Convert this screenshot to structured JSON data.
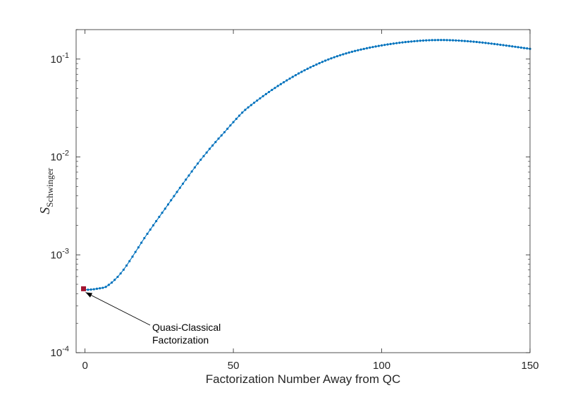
{
  "chart_data": {
    "type": "scatter",
    "xlabel": "Factorization Number Away from QC",
    "ylabel": "S",
    "ylabel_subscript": "Schwinger",
    "xlim": [
      -3,
      150
    ],
    "ylim": [
      0.0001,
      0.2
    ],
    "yscale": "log",
    "xticks": [
      0,
      50,
      100,
      150
    ],
    "xtick_labels": [
      "0",
      "50",
      "100",
      "150"
    ],
    "yticks": [
      0.0001,
      0.001,
      0.01,
      0.1
    ],
    "ytick_labels": [
      {
        "base": "10",
        "exp": "-4"
      },
      {
        "base": "10",
        "exp": "-3"
      },
      {
        "base": "10",
        "exp": "-2"
      },
      {
        "base": "10",
        "exp": "-1"
      }
    ],
    "grid": false,
    "colors": {
      "series": "#0072bd",
      "highlight": "#a2142f",
      "axis": "#262626"
    },
    "series": [
      {
        "x": [
          0,
          1,
          2,
          3,
          4,
          5,
          6,
          7,
          8,
          9,
          10,
          11,
          12,
          13,
          14,
          15,
          16,
          17,
          18,
          19,
          20,
          21,
          22,
          23,
          24,
          25,
          26,
          27,
          28,
          29,
          30,
          31,
          32,
          33,
          34,
          35,
          36,
          37,
          38,
          39,
          40,
          41,
          42,
          43,
          44,
          45,
          46,
          47,
          48,
          49,
          50,
          51,
          52,
          53,
          54,
          55,
          56,
          57,
          58,
          59,
          60,
          61,
          62,
          63,
          64,
          65,
          66,
          67,
          68,
          69,
          70,
          71,
          72,
          73,
          74,
          75,
          76,
          77,
          78,
          79,
          80,
          81,
          82,
          83,
          84,
          85,
          86,
          87,
          88,
          89,
          90,
          91,
          92,
          93,
          94,
          95,
          96,
          97,
          98,
          99,
          100,
          101,
          102,
          103,
          104,
          105,
          106,
          107,
          108,
          109,
          110,
          111,
          112,
          113,
          114,
          115,
          116,
          117,
          118,
          119,
          120,
          121,
          122,
          123,
          124,
          125,
          126,
          127,
          128,
          129,
          130,
          131,
          132,
          133,
          134,
          135,
          136,
          137,
          138,
          139,
          140,
          141,
          142,
          143,
          144,
          145,
          146,
          147,
          148,
          149,
          150
        ],
        "values": [
          0.00044,
          0.00044,
          0.000442,
          0.000445,
          0.00045,
          0.000455,
          0.00046,
          0.00047,
          0.000493,
          0.00052,
          0.000555,
          0.000595,
          0.000645,
          0.000705,
          0.000777,
          0.000862,
          0.000958,
          0.00107,
          0.00119,
          0.00133,
          0.00148,
          0.00164,
          0.00181,
          0.002,
          0.00221,
          0.00244,
          0.00269,
          0.00296,
          0.00327,
          0.00361,
          0.00398,
          0.00439,
          0.00484,
          0.00533,
          0.00587,
          0.00646,
          0.00711,
          0.00782,
          0.00857,
          0.00937,
          0.0102,
          0.0111,
          0.0121,
          0.0131,
          0.0142,
          0.0154,
          0.0166,
          0.0179,
          0.0194,
          0.021,
          0.0227,
          0.0245,
          0.0264,
          0.0284,
          0.0303,
          0.0321,
          0.0339,
          0.0358,
          0.0377,
          0.0397,
          0.0418,
          0.0439,
          0.0461,
          0.0484,
          0.0507,
          0.0531,
          0.0555,
          0.058,
          0.0606,
          0.0632,
          0.0658,
          0.0685,
          0.0713,
          0.074,
          0.0768,
          0.0796,
          0.0824,
          0.0852,
          0.088,
          0.0908,
          0.0936,
          0.0964,
          0.0991,
          0.1018,
          0.1044,
          0.107,
          0.1095,
          0.1119,
          0.1143,
          0.1166,
          0.1188,
          0.121,
          0.1231,
          0.1251,
          0.1271,
          0.1291,
          0.131,
          0.1328,
          0.1346,
          0.1363,
          0.138,
          0.1396,
          0.1412,
          0.1427,
          0.1441,
          0.1455,
          0.1468,
          0.148,
          0.1492,
          0.1503,
          0.1513,
          0.1523,
          0.1532,
          0.154,
          0.1547,
          0.1553,
          0.1558,
          0.1562,
          0.1564,
          0.1566,
          0.1566,
          0.1565,
          0.1563,
          0.156,
          0.1556,
          0.1551,
          0.1545,
          0.1538,
          0.1531,
          0.1523,
          0.1514,
          0.1505,
          0.1495,
          0.1485,
          0.1474,
          0.1463,
          0.1451,
          0.1439,
          0.1427,
          0.1414,
          0.1401,
          0.1388,
          0.1375,
          0.1362,
          0.1349,
          0.1336,
          0.1323,
          0.131,
          0.1297,
          0.1285,
          0.1273
        ]
      }
    ],
    "highlight_point": {
      "x": -0.5,
      "y": 0.00045
    },
    "annotation": {
      "lines": [
        "Quasi-Classical",
        "Factorization"
      ],
      "points_to": {
        "x": 0.2,
        "y": 0.00042
      }
    }
  }
}
